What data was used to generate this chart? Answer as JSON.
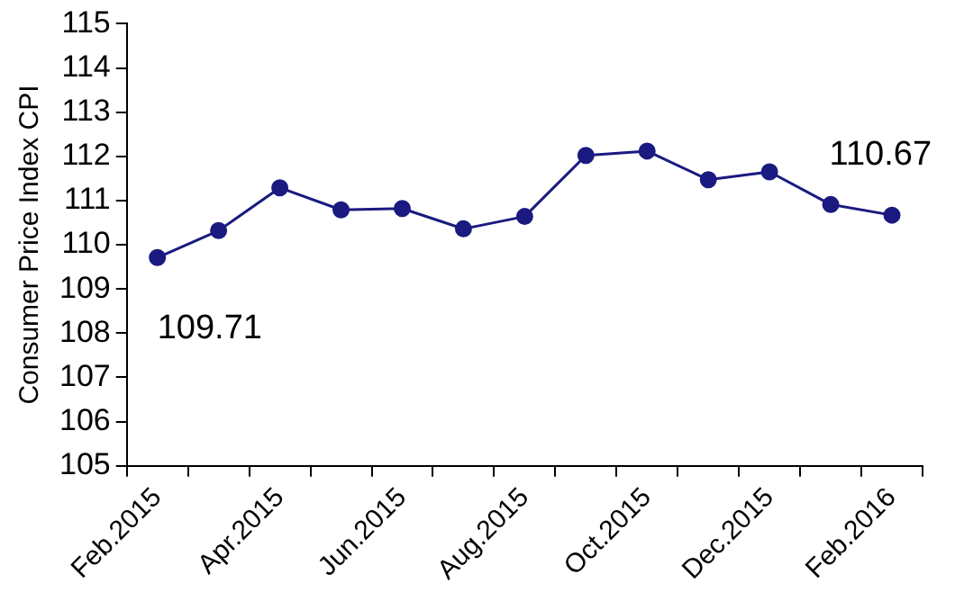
{
  "chart_data": {
    "type": "line",
    "ylabel": "Consumer Price Index CPI",
    "categories": [
      "Feb.2015",
      null,
      "Apr.2015",
      null,
      "Jun.2015",
      null,
      "Aug.2015",
      null,
      "Oct.2015",
      null,
      "Dec.2015",
      null,
      "Feb.2016"
    ],
    "values": [
      109.71,
      110.32,
      111.29,
      110.79,
      110.82,
      110.36,
      110.64,
      112.02,
      112.12,
      111.47,
      111.65,
      110.91,
      110.67
    ],
    "value_labels": [
      "109.71",
      null,
      null,
      null,
      null,
      null,
      null,
      null,
      null,
      null,
      null,
      null,
      "110.67"
    ],
    "color": "#1a1a80",
    "marker": "circle",
    "line_style": "solid",
    "grid": false,
    "legend": false,
    "ylim": [
      105,
      115
    ],
    "yticks": [
      105,
      106,
      107,
      108,
      109,
      110,
      111,
      112,
      113,
      114,
      115
    ]
  }
}
